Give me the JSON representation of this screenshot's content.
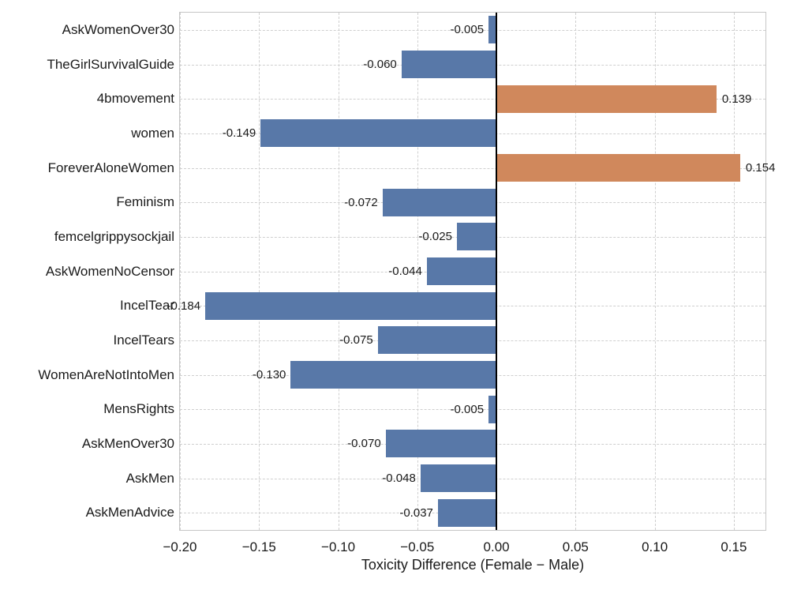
{
  "chart_data": {
    "type": "bar",
    "orientation": "horizontal",
    "title": "",
    "xlabel": "Toxicity Difference (Female − Male)",
    "ylabel": "",
    "categories": [
      "AskWomenOver30",
      "TheGirlSurvivalGuide",
      "4bmovement",
      "women",
      "ForeverAloneWomen",
      "Feminism",
      "femcelgrippysockjail",
      "AskWomenNoCensor",
      "IncelTear",
      "IncelTears",
      "WomenAreNotIntoMen",
      "MensRights",
      "AskMenOver30",
      "AskMen",
      "AskMenAdvice"
    ],
    "values": [
      -0.005,
      -0.06,
      0.139,
      -0.149,
      0.154,
      -0.072,
      -0.025,
      -0.044,
      -0.184,
      -0.075,
      -0.13,
      -0.005,
      -0.07,
      -0.048,
      -0.037
    ],
    "value_labels": [
      "-0.005",
      "-0.060",
      "0.139",
      "-0.149",
      "0.154",
      "-0.072",
      "-0.025",
      "-0.044",
      "-0.184",
      "-0.075",
      "-0.130",
      "-0.005",
      "-0.070",
      "-0.048",
      "-0.037"
    ],
    "xlim": [
      -0.2,
      0.17
    ],
    "x_ticks": [
      -0.2,
      -0.15,
      -0.1,
      -0.05,
      0.0,
      0.05,
      0.1,
      0.15
    ],
    "x_tick_labels": [
      "−0.20",
      "−0.15",
      "−0.10",
      "−0.05",
      "0.00",
      "0.05",
      "0.10",
      "0.15"
    ],
    "grid": true,
    "legend_position": "none",
    "colors": {
      "bar_negative": "#5878A8",
      "bar_positive": "#D0885C",
      "zero_line": "#000000",
      "grid": "#CFCFCF",
      "plot_border": "#C6C6C6",
      "text": "#1A1A1A",
      "background": "#FFFFFF"
    }
  }
}
